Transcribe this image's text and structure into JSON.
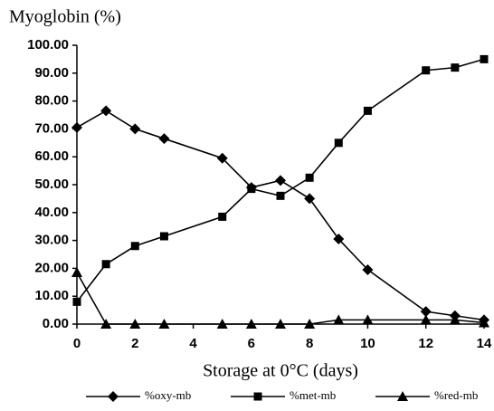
{
  "chart_data": {
    "type": "line",
    "y_label": "Myoglobin (%)",
    "x_label": "Storage at 0°C (days)",
    "x": [
      0,
      1,
      2,
      3,
      5,
      6,
      7,
      8,
      9,
      10,
      12,
      13,
      14
    ],
    "series": [
      {
        "name": "%oxy-mb",
        "color": "#000000",
        "marker": "diamond",
        "values": [
          70.5,
          76.5,
          70,
          66.5,
          59.5,
          49,
          51.5,
          45,
          30.5,
          19.5,
          4.5,
          3,
          1.5
        ]
      },
      {
        "name": "%met-mb",
        "color": "#000000",
        "marker": "square",
        "values": [
          8,
          21.5,
          28,
          31.5,
          38.5,
          48.5,
          46,
          52.5,
          65,
          76.5,
          91,
          92,
          95
        ]
      },
      {
        "name": "%red-mb",
        "color": "#000000",
        "marker": "triangle",
        "values": [
          18.5,
          0,
          0,
          0,
          0,
          0,
          0,
          0,
          1.5,
          1.5,
          1.5,
          1.5,
          0.5
        ]
      }
    ],
    "xlim": [
      0,
      14
    ],
    "xticks": [
      0,
      2,
      4,
      6,
      8,
      10,
      12,
      14
    ],
    "ylim": [
      0,
      100
    ],
    "yticks": [
      {
        "value": 0,
        "label": "0.00"
      },
      {
        "value": 10,
        "label": "10.00"
      },
      {
        "value": 20,
        "label": "20.00"
      },
      {
        "value": 30,
        "label": "30.00"
      },
      {
        "value": 40,
        "label": "40.00"
      },
      {
        "value": 50,
        "label": "50.00"
      },
      {
        "value": 60,
        "label": "60.00"
      },
      {
        "value": 70,
        "label": "70.00"
      },
      {
        "value": 80,
        "label": "80.00"
      },
      {
        "value": 90,
        "label": "90.00"
      },
      {
        "value": 100,
        "label": "100.00"
      }
    ],
    "grid": false
  }
}
